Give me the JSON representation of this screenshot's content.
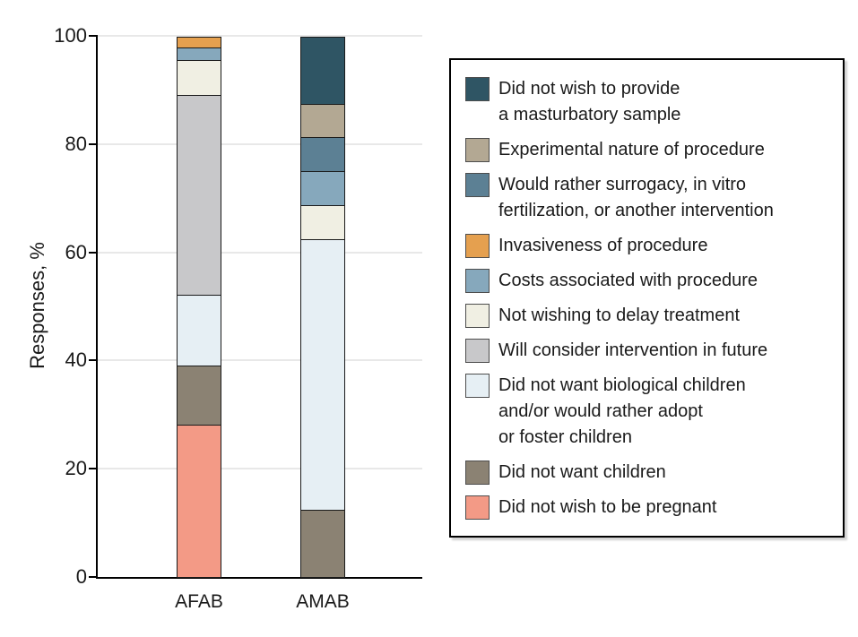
{
  "chart_data": {
    "type": "bar",
    "stacked": true,
    "title": "",
    "xlabel": "",
    "ylabel": "Responses, %",
    "ylim": [
      0,
      100
    ],
    "y_ticks": [
      0,
      20,
      40,
      60,
      80,
      100
    ],
    "grid": "horizontal",
    "legend_position": "right",
    "categories": [
      "AFAB",
      "AMAB"
    ],
    "series": [
      {
        "name": "Did not wish to provide a masturbatory sample",
        "legend_label": "Did not wish to provide\na masturbatory sample",
        "color": "#2f5564",
        "values": [
          0,
          12.5
        ]
      },
      {
        "name": "Experimental nature of procedure",
        "legend_label": "Experimental nature of procedure",
        "color": "#b3a893",
        "values": [
          0,
          6.25
        ]
      },
      {
        "name": "Would rather surrogacy, in vitro fertilization, or another intervention",
        "legend_label": "Would rather surrogacy, in vitro\nfertilization, or another intervention",
        "color": "#5c8094",
        "values": [
          0,
          6.25
        ]
      },
      {
        "name": "Invasiveness of procedure",
        "legend_label": "Invasiveness of procedure",
        "color": "#e5a04f",
        "values": [
          2.2,
          0
        ]
      },
      {
        "name": "Costs associated with procedure",
        "legend_label": "Costs associated with procedure",
        "color": "#86a8bc",
        "values": [
          2.2,
          6.25
        ]
      },
      {
        "name": "Not wishing to delay treatment",
        "legend_label": "Not wishing to delay treatment",
        "color": "#f0efe3",
        "values": [
          6.6,
          6.25
        ]
      },
      {
        "name": "Will consider intervention in future",
        "legend_label": "Will consider intervention in future",
        "color": "#c8c8ca",
        "values": [
          36.9,
          0
        ]
      },
      {
        "name": "Did not want biological children and/or would rather adopt or foster children",
        "legend_label": "Did not want biological children\nand/or would rather adopt\nor foster children",
        "color": "#e6eff4",
        "values": [
          13.0,
          50.0
        ]
      },
      {
        "name": "Did not want children",
        "legend_label": "Did not want children",
        "color": "#8b8273",
        "values": [
          10.9,
          12.5
        ]
      },
      {
        "name": "Did not wish to be pregnant",
        "legend_label": "Did not wish to be pregnant",
        "color": "#f39a86",
        "values": [
          28.2,
          0
        ]
      }
    ]
  },
  "styles": {
    "bar_border": "#1a1a1a",
    "grid_color": "#e8e8e8",
    "axis_color": "#000000",
    "text_color": "#1a1a1a",
    "legend_border": "#000000",
    "swatch_border": "#4d4d4d",
    "background": "#ffffff"
  }
}
